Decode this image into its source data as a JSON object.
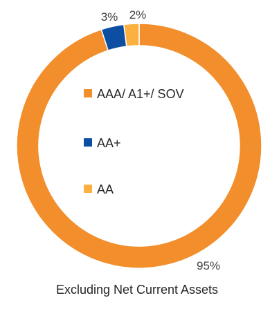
{
  "chart_data": {
    "type": "pie",
    "subtype": "donut",
    "categories": [
      "AAA/ A1+/ SOV",
      "AA+",
      "AA"
    ],
    "values": [
      95,
      3,
      2
    ],
    "data_labels": [
      "95%",
      "3%",
      "2%"
    ],
    "colors": [
      "#F28E2B",
      "#0B4EA2",
      "#FBB040"
    ],
    "legend_position": "center",
    "caption": "Excluding Net Current Assets"
  }
}
